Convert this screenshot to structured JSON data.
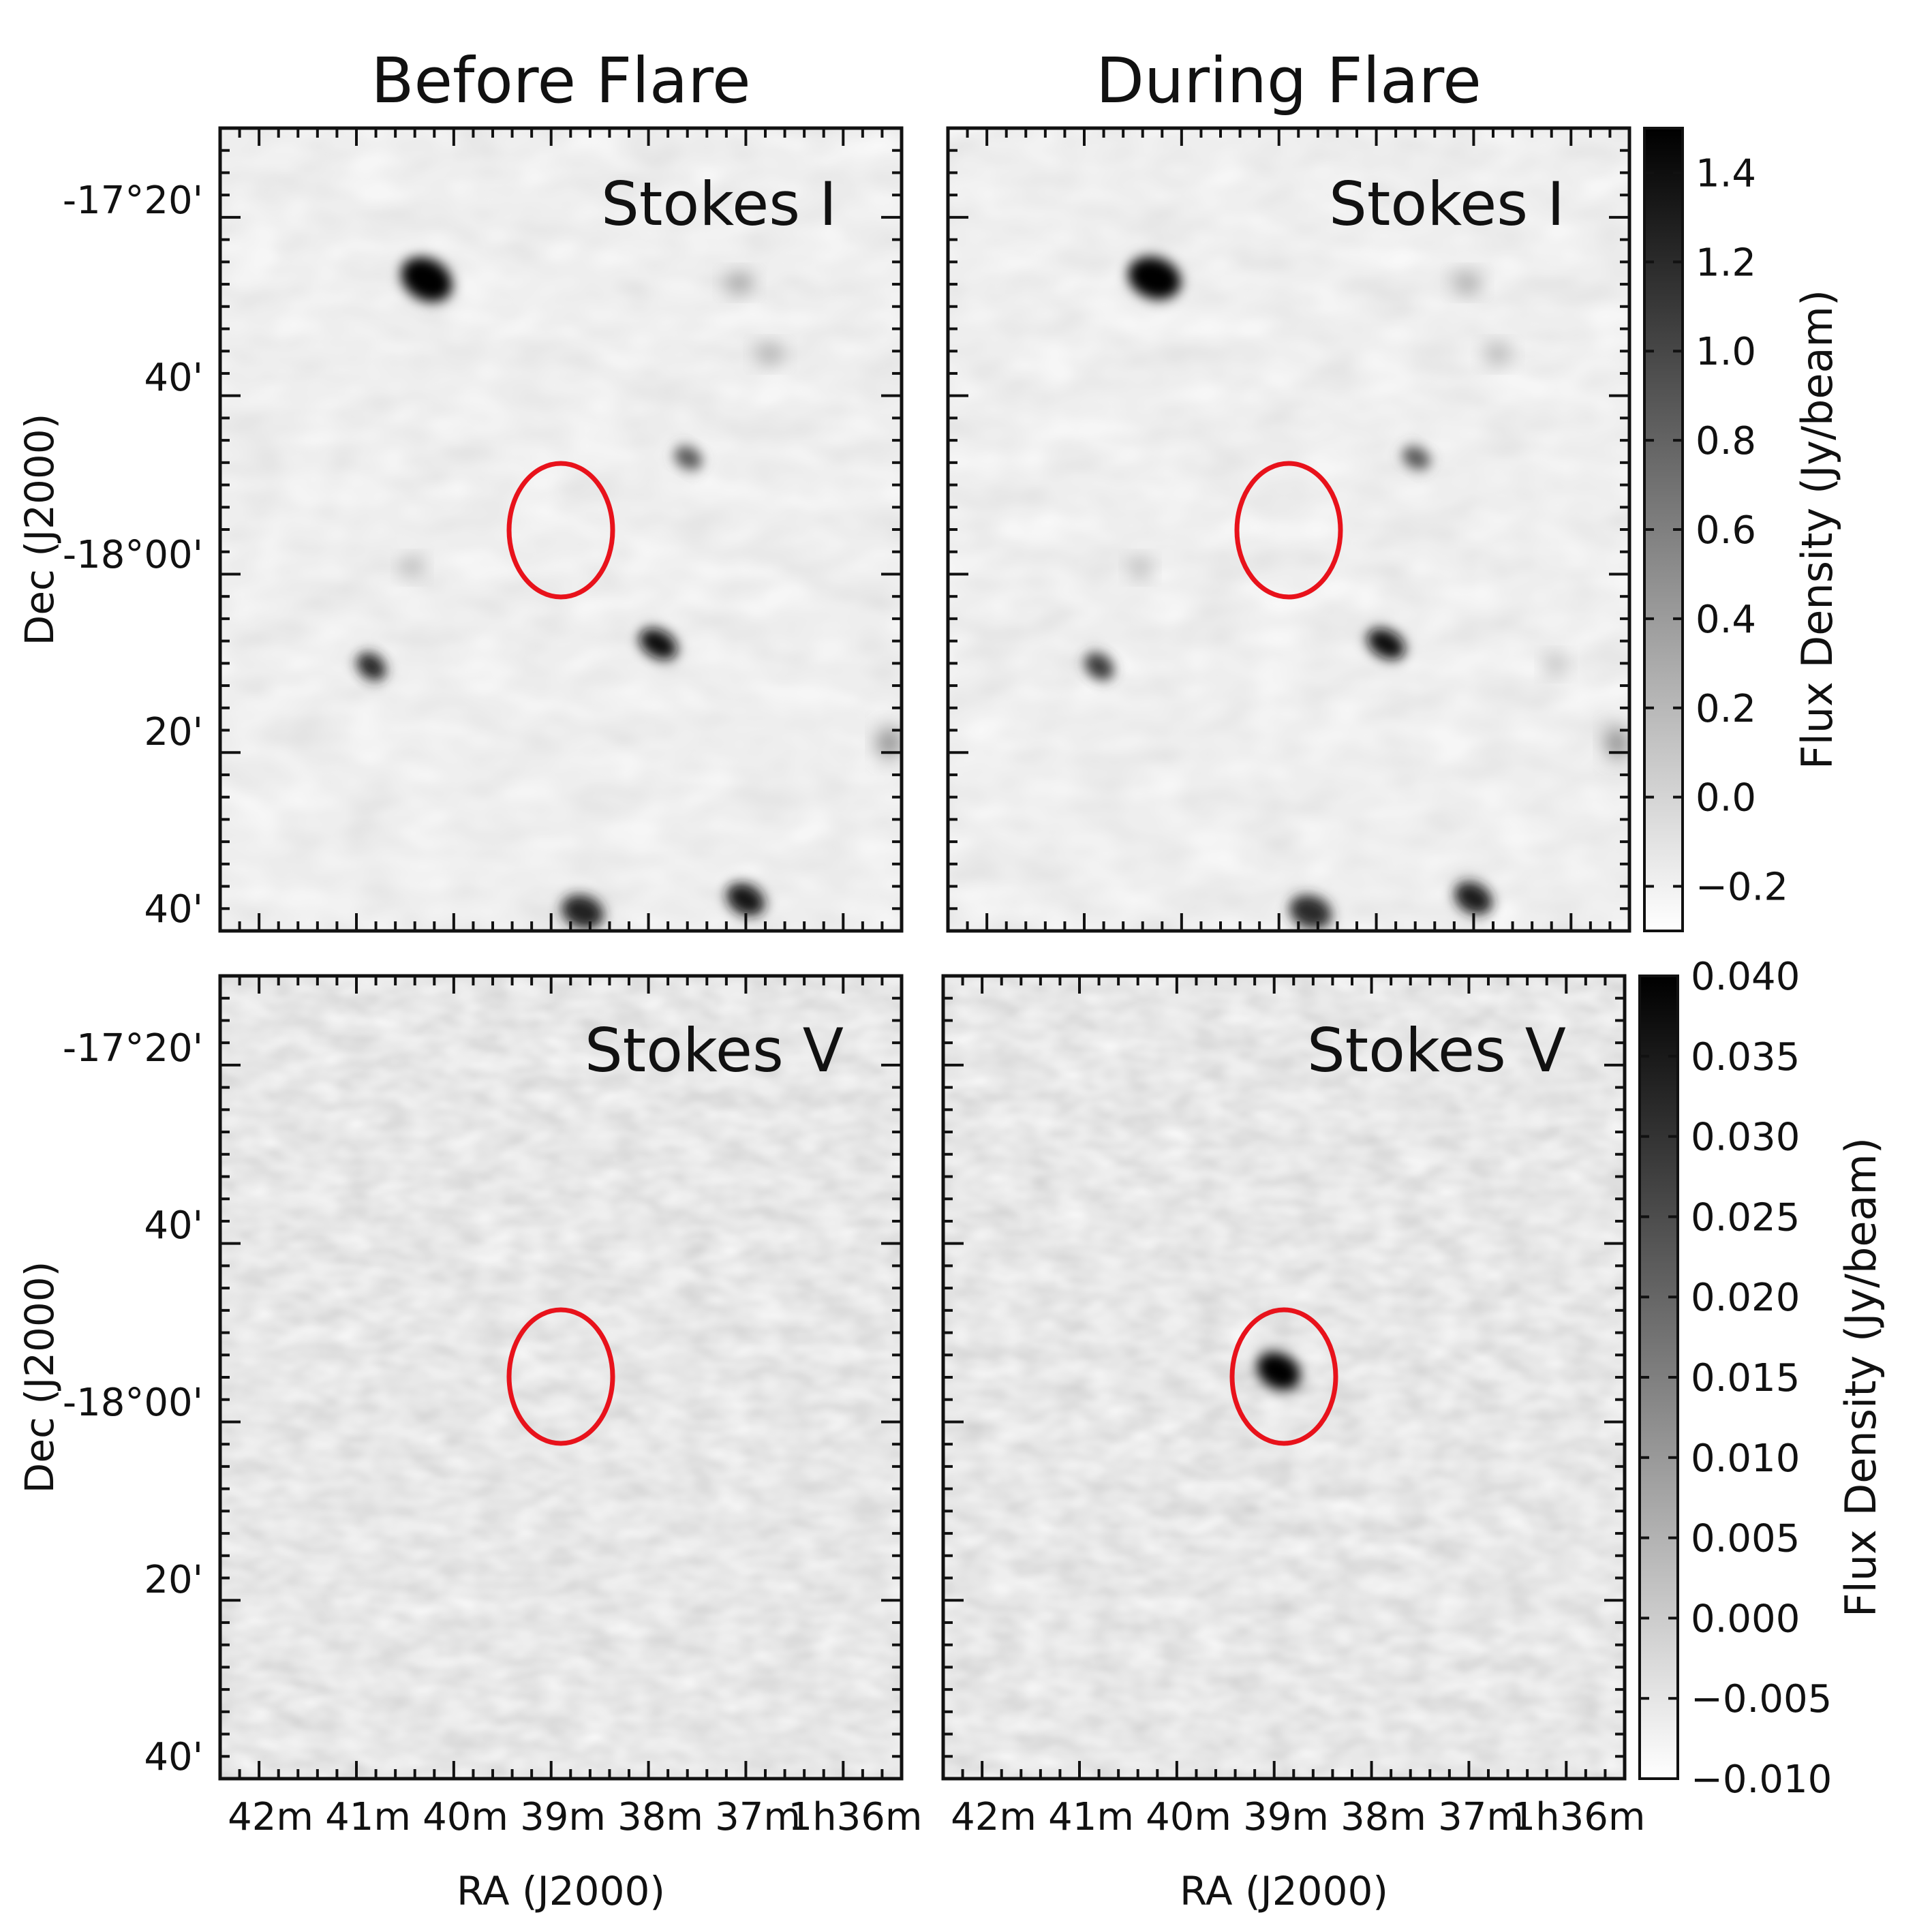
{
  "figure": {
    "column_titles": [
      "Before Flare",
      "During Flare"
    ],
    "panels": [
      {
        "label": "Stokes I",
        "epoch": "before",
        "stokes": "I"
      },
      {
        "label": "Stokes I",
        "epoch": "during",
        "stokes": "I"
      },
      {
        "label": "Stokes V",
        "epoch": "before",
        "stokes": "V"
      },
      {
        "label": "Stokes V",
        "epoch": "during",
        "stokes": "V"
      }
    ],
    "x_axis_label": "RA (J2000)",
    "y_axis_label": "Dec (J2000)",
    "ra_tick_labels": [
      "42m",
      "41m",
      "40m",
      "39m",
      "38m",
      "37m",
      "1h36m"
    ],
    "dec_tick_labels": [
      "-17°20'",
      "40'",
      "-18°00'",
      "20'",
      "40'"
    ],
    "colorbar_I": {
      "label": "Flux Density (Jy/beam)",
      "tick_labels": [
        "1.4",
        "1.2",
        "1.0",
        "0.8",
        "0.6",
        "0.4",
        "0.2",
        "0.0",
        "−0.2"
      ],
      "range": [
        -0.3,
        1.5
      ]
    },
    "colorbar_V": {
      "label": "Flux Density (Jy/beam)",
      "tick_labels": [
        "0.040",
        "0.035",
        "0.030",
        "0.025",
        "0.020",
        "0.015",
        "0.010",
        "0.005",
        "0.000",
        "−0.005",
        "−0.010"
      ],
      "range": [
        -0.01,
        0.04
      ]
    },
    "colors": {
      "marker_circle": "#e8121b",
      "background_gray": "#d9d9d9",
      "source_black": "#0a0a0a"
    }
  }
}
